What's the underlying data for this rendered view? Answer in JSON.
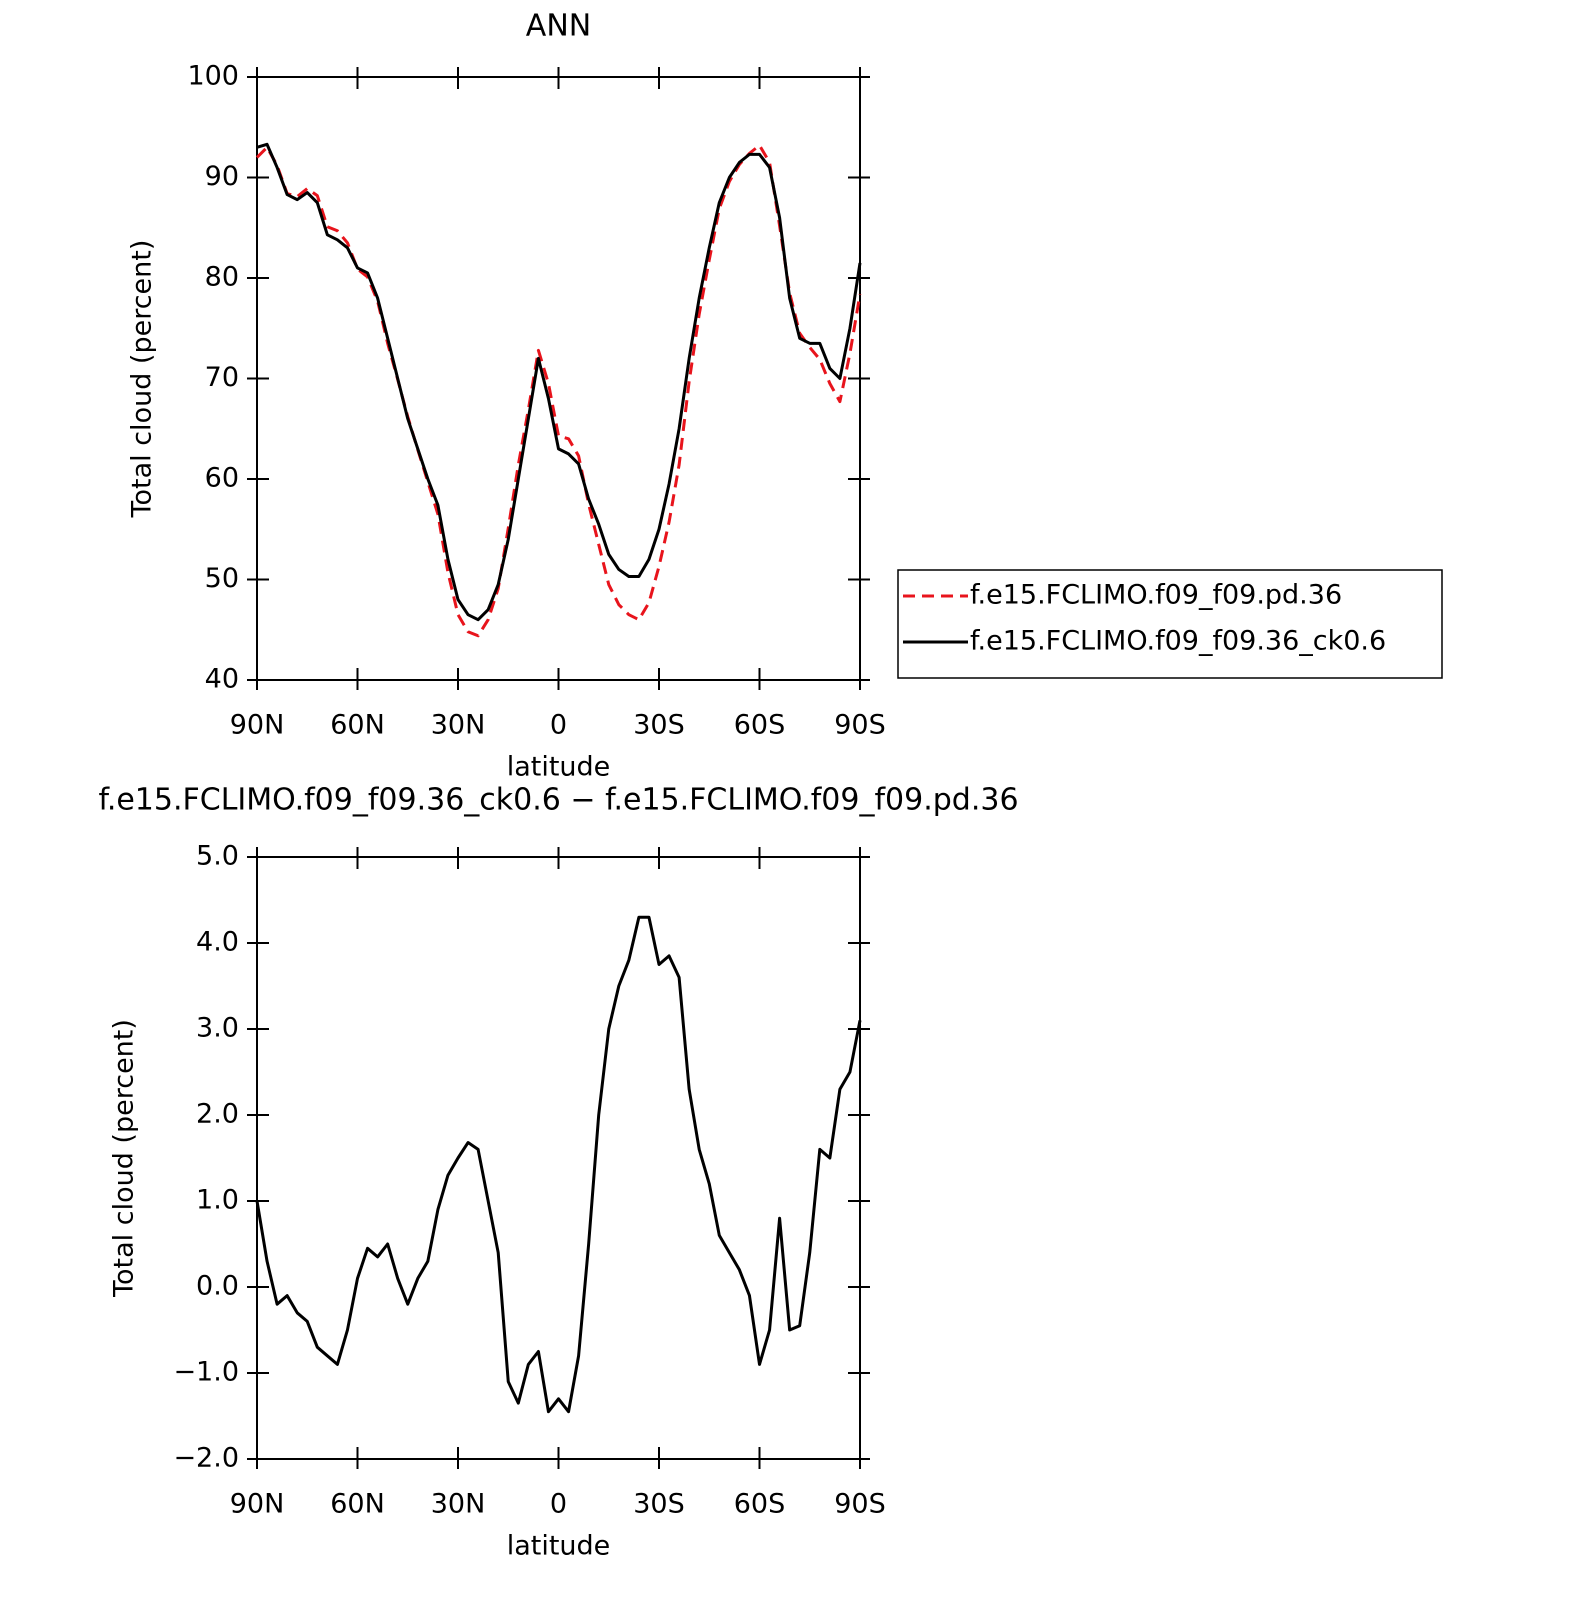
{
  "chart_data": [
    {
      "type": "line",
      "title": "ANN",
      "xlabel": "latitude",
      "ylabel": "Total cloud (percent)",
      "x": [
        90,
        87,
        84,
        81,
        78,
        75,
        72,
        69,
        66,
        63,
        60,
        57,
        54,
        51,
        48,
        45,
        42,
        39,
        36,
        33,
        30,
        27,
        24,
        21,
        18,
        15,
        12,
        9,
        6,
        3,
        0,
        -3,
        -6,
        -9,
        -12,
        -15,
        -18,
        -21,
        -24,
        -27,
        -30,
        -33,
        -36,
        -39,
        -42,
        -45,
        -48,
        -51,
        -54,
        -57,
        -60,
        -63,
        -66,
        -69,
        -72,
        -75,
        -78,
        -81,
        -84,
        -87,
        -90
      ],
      "series": [
        {
          "name": "f.e15.FCLIMO.f09_f09.pd.36",
          "color": "#e8141c",
          "linestyle": "dashed",
          "values": [
            92.0,
            93.0,
            91.2,
            88.4,
            88.1,
            88.9,
            88.2,
            85.1,
            84.7,
            83.5,
            80.9,
            80.1,
            77.7,
            73.5,
            69.9,
            66.2,
            62.9,
            59.7,
            56.5,
            50.7,
            46.5,
            44.8,
            44.4,
            46.0,
            49.1,
            55.1,
            61.4,
            66.9,
            72.8,
            69.5,
            64.3,
            64.0,
            62.3,
            57.5,
            53.5,
            49.5,
            47.5,
            46.5,
            46.0,
            47.7,
            51.3,
            55.7,
            61.4,
            69.7,
            76.4,
            81.8,
            86.9,
            89.6,
            91.3,
            92.4,
            93.2,
            91.5,
            85.2,
            78.5,
            74.5,
            73.1,
            71.9,
            69.5,
            67.7,
            72.5,
            78.4
          ]
        },
        {
          "name": "f.e15.FCLIMO.f09_f09.36_ck0.6",
          "color": "#000000",
          "linestyle": "solid",
          "values": [
            93,
            93.3,
            91,
            88.3,
            87.8,
            88.5,
            87.5,
            84.3,
            83.8,
            83,
            81,
            80.5,
            78,
            74,
            70,
            66,
            63,
            60,
            57.4,
            52,
            48,
            46.5,
            46,
            47,
            49.5,
            54,
            60,
            66,
            72,
            68,
            63,
            62.5,
            61.5,
            58,
            55.5,
            52.5,
            51,
            50.3,
            50.3,
            52,
            55,
            59.5,
            65,
            72,
            78,
            83,
            87.5,
            90,
            91.5,
            92.3,
            92.3,
            91,
            86,
            78,
            74,
            73.5,
            73.5,
            71,
            70,
            75,
            81.5
          ]
        }
      ],
      "xlim": [
        90,
        -90
      ],
      "xticks": [
        {
          "value": 90,
          "label": "90N"
        },
        {
          "value": 60,
          "label": "60N"
        },
        {
          "value": 30,
          "label": "30N"
        },
        0,
        {
          "value": -30,
          "label": "30S"
        },
        {
          "value": -60,
          "label": "60S"
        },
        {
          "value": -90,
          "label": "90S"
        }
      ],
      "ylim": [
        40,
        100
      ],
      "yticks": [
        40,
        50,
        60,
        70,
        80,
        90,
        100
      ],
      "legend": "right"
    },
    {
      "type": "line",
      "title": "f.e15.FCLIMO.f09_f09.36_ck0.6 − f.e15.FCLIMO.f09_f09.pd.36",
      "xlabel": "latitude",
      "ylabel": "Total cloud (percent)",
      "x": [
        90,
        87,
        84,
        81,
        78,
        75,
        72,
        69,
        66,
        63,
        60,
        57,
        54,
        51,
        48,
        45,
        42,
        39,
        36,
        33,
        30,
        27,
        24,
        21,
        18,
        15,
        12,
        9,
        6,
        3,
        0,
        -3,
        -6,
        -9,
        -12,
        -15,
        -18,
        -21,
        -24,
        -27,
        -30,
        -33,
        -36,
        -39,
        -42,
        -45,
        -48,
        -51,
        -54,
        -57,
        -60,
        -63,
        -66,
        -69,
        -72,
        -75,
        -78,
        -81,
        -84,
        -87,
        -90
      ],
      "color": "#000000",
      "values": [
        1.0,
        0.3,
        -0.2,
        -0.1,
        -0.3,
        -0.4,
        -0.7,
        -0.8,
        -0.9,
        -0.5,
        0.1,
        0.45,
        0.35,
        0.5,
        0.1,
        -0.2,
        0.1,
        0.3,
        0.9,
        1.3,
        1.5,
        1.68,
        1.6,
        1.0,
        0.4,
        -1.1,
        -1.35,
        -0.9,
        -0.75,
        -1.45,
        -1.3,
        -1.45,
        -0.8,
        0.5,
        2.0,
        3.0,
        3.5,
        3.8,
        4.3,
        4.3,
        3.75,
        3.85,
        3.6,
        2.3,
        1.6,
        1.2,
        0.6,
        0.4,
        0.2,
        -0.1,
        -0.9,
        -0.5,
        0.8,
        -0.5,
        -0.45,
        0.4,
        1.6,
        1.5,
        2.3,
        2.5,
        3.1
      ],
      "xlim": [
        90,
        -90
      ],
      "xticks": [
        {
          "value": 90,
          "label": "90N"
        },
        {
          "value": 60,
          "label": "60N"
        },
        {
          "value": 30,
          "label": "30N"
        },
        0,
        {
          "value": -30,
          "label": "30S"
        },
        {
          "value": -60,
          "label": "60S"
        },
        {
          "value": -90,
          "label": "90S"
        }
      ],
      "ylim": [
        -2,
        5
      ],
      "yticks": [
        {
          "value": -2,
          "label": "−2.0"
        },
        {
          "value": -1,
          "label": "−1.0"
        },
        {
          "value": 0,
          "label": "0.0"
        },
        {
          "value": 1,
          "label": "1.0"
        },
        {
          "value": 2,
          "label": "2.0"
        },
        {
          "value": 3,
          "label": "3.0"
        },
        {
          "value": 4,
          "label": "4.0"
        },
        {
          "value": 5,
          "label": "5.0"
        }
      ]
    }
  ]
}
